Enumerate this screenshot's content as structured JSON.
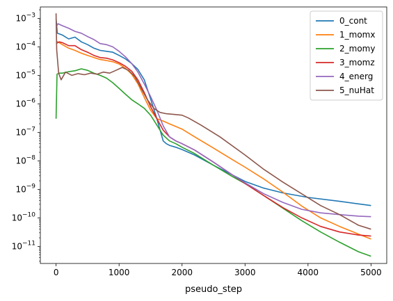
{
  "chart_data": {
    "type": "line",
    "title": "",
    "xlabel": "pseudo_step",
    "ylabel": "",
    "yscale": "log",
    "xlim": [
      -250,
      5250
    ],
    "ylim_log10": [
      -11.6,
      -2.6
    ],
    "xticks": [
      0,
      1000,
      2000,
      3000,
      4000,
      5000
    ],
    "xtick_labels": [
      "0",
      "1000",
      "2000",
      "3000",
      "4000",
      "5000"
    ],
    "yticks_exp": [
      -11,
      -10,
      -9,
      -8,
      -7,
      -6,
      -5,
      -4,
      -3
    ],
    "grid": false,
    "legend_position": "top-right",
    "series": [
      {
        "name": "0_cont",
        "color": "#1f77b4",
        "points": [
          [
            0,
            0.001
          ],
          [
            20,
            0.0003
          ],
          [
            100,
            0.00026
          ],
          [
            200,
            0.00019
          ],
          [
            300,
            0.00022
          ],
          [
            400,
            0.00015
          ],
          [
            500,
            0.00012
          ],
          [
            600,
            9e-05
          ],
          [
            700,
            7.5e-05
          ],
          [
            800,
            7e-05
          ],
          [
            900,
            6.5e-05
          ],
          [
            1000,
            5e-05
          ],
          [
            1100,
            3.8e-05
          ],
          [
            1200,
            2.6e-05
          ],
          [
            1300,
            1.6e-05
          ],
          [
            1400,
            7e-06
          ],
          [
            1500,
            1.5e-06
          ],
          [
            1600,
            3e-07
          ],
          [
            1700,
            5e-08
          ],
          [
            1750,
            4e-08
          ],
          [
            1800,
            3.5e-08
          ],
          [
            1900,
            3e-08
          ],
          [
            2000,
            2.5e-08
          ],
          [
            2200,
            1.6e-08
          ],
          [
            2500,
            7e-09
          ],
          [
            2800,
            3.2e-09
          ],
          [
            3000,
            1.9e-09
          ],
          [
            3300,
            1.1e-09
          ],
          [
            3600,
            7.5e-10
          ],
          [
            4000,
            5.2e-10
          ],
          [
            4500,
            3.8e-10
          ],
          [
            5000,
            2.7e-10
          ]
        ]
      },
      {
        "name": "1_momx",
        "color": "#ff7f0e",
        "points": [
          [
            0,
            0.00016
          ],
          [
            50,
            0.00014
          ],
          [
            100,
            0.00012
          ],
          [
            200,
            9e-05
          ],
          [
            300,
            7.5e-05
          ],
          [
            400,
            6e-05
          ],
          [
            500,
            5e-05
          ],
          [
            600,
            4.2e-05
          ],
          [
            700,
            3.6e-05
          ],
          [
            800,
            3.3e-05
          ],
          [
            900,
            3e-05
          ],
          [
            1000,
            2.5e-05
          ],
          [
            1100,
            1.8e-05
          ],
          [
            1200,
            1.1e-05
          ],
          [
            1300,
            5e-06
          ],
          [
            1400,
            1.7e-06
          ],
          [
            1500,
            6e-07
          ],
          [
            1600,
            3e-07
          ],
          [
            1700,
            2.5e-07
          ],
          [
            1800,
            2e-07
          ],
          [
            2000,
            1.3e-07
          ],
          [
            2200,
            7e-08
          ],
          [
            2500,
            2.8e-08
          ],
          [
            2800,
            1.1e-08
          ],
          [
            3000,
            6e-09
          ],
          [
            3300,
            2.3e-09
          ],
          [
            3600,
            8e-10
          ],
          [
            3900,
            2.6e-10
          ],
          [
            4200,
            1e-10
          ],
          [
            4500,
            5e-11
          ],
          [
            4800,
            2.7e-11
          ],
          [
            5000,
            1.8e-11
          ]
        ]
      },
      {
        "name": "2_momy",
        "color": "#2ca02c",
        "points": [
          [
            0,
            3e-07
          ],
          [
            15,
            1.1e-05
          ],
          [
            50,
            1.2e-05
          ],
          [
            100,
            1.2e-05
          ],
          [
            200,
            1.35e-05
          ],
          [
            300,
            1.45e-05
          ],
          [
            400,
            1.7e-05
          ],
          [
            500,
            1.5e-05
          ],
          [
            600,
            1.2e-05
          ],
          [
            700,
            1e-05
          ],
          [
            800,
            8e-06
          ],
          [
            900,
            5.5e-06
          ],
          [
            1000,
            3.5e-06
          ],
          [
            1100,
            2.2e-06
          ],
          [
            1200,
            1.4e-06
          ],
          [
            1300,
            1e-06
          ],
          [
            1400,
            7e-07
          ],
          [
            1500,
            4e-07
          ],
          [
            1600,
            1.8e-07
          ],
          [
            1700,
            8e-08
          ],
          [
            1800,
            5e-08
          ],
          [
            1900,
            4e-08
          ],
          [
            2000,
            3e-08
          ],
          [
            2200,
            1.8e-08
          ],
          [
            2500,
            7e-09
          ],
          [
            2800,
            2.8e-09
          ],
          [
            3000,
            1.6e-09
          ],
          [
            3300,
            6e-10
          ],
          [
            3600,
            2.2e-10
          ],
          [
            3900,
            8e-11
          ],
          [
            4200,
            3.2e-11
          ],
          [
            4500,
            1.4e-11
          ],
          [
            4800,
            6.5e-12
          ],
          [
            5000,
            4.5e-12
          ]
        ]
      },
      {
        "name": "3_momz",
        "color": "#d62728",
        "points": [
          [
            0,
            0.00013
          ],
          [
            50,
            0.00015
          ],
          [
            100,
            0.00014
          ],
          [
            200,
            0.00011
          ],
          [
            300,
            0.00011
          ],
          [
            400,
            8e-05
          ],
          [
            500,
            6.5e-05
          ],
          [
            600,
            5e-05
          ],
          [
            700,
            4.2e-05
          ],
          [
            800,
            4e-05
          ],
          [
            900,
            3.5e-05
          ],
          [
            1000,
            2.8e-05
          ],
          [
            1100,
            2.1e-05
          ],
          [
            1200,
            1.4e-05
          ],
          [
            1300,
            7e-06
          ],
          [
            1400,
            2.5e-06
          ],
          [
            1500,
            8e-07
          ],
          [
            1600,
            3e-07
          ],
          [
            1700,
            1.2e-07
          ],
          [
            1800,
            7e-08
          ],
          [
            1900,
            5e-08
          ],
          [
            2000,
            4e-08
          ],
          [
            2200,
            2.4e-08
          ],
          [
            2500,
            9e-09
          ],
          [
            2800,
            3.2e-09
          ],
          [
            3000,
            1.6e-09
          ],
          [
            3300,
            6e-10
          ],
          [
            3600,
            2.3e-10
          ],
          [
            3900,
            1e-10
          ],
          [
            4200,
            5e-11
          ],
          [
            4500,
            3.2e-11
          ],
          [
            4800,
            2.5e-11
          ],
          [
            5000,
            2.3e-11
          ]
        ]
      },
      {
        "name": "4_energ",
        "color": "#9467bd",
        "points": [
          [
            0,
            0.0005
          ],
          [
            30,
            0.00065
          ],
          [
            100,
            0.00055
          ],
          [
            200,
            0.00045
          ],
          [
            300,
            0.00035
          ],
          [
            400,
            0.0003
          ],
          [
            500,
            0.00023
          ],
          [
            600,
            0.00018
          ],
          [
            700,
            0.00013
          ],
          [
            800,
            0.00012
          ],
          [
            900,
            0.0001
          ],
          [
            1000,
            7e-05
          ],
          [
            1100,
            4.5e-05
          ],
          [
            1200,
            2.6e-05
          ],
          [
            1300,
            1.3e-05
          ],
          [
            1400,
            5e-06
          ],
          [
            1500,
            1.8e-06
          ],
          [
            1600,
            6e-07
          ],
          [
            1700,
            1.7e-07
          ],
          [
            1800,
            7e-08
          ],
          [
            1900,
            5e-08
          ],
          [
            2000,
            4e-08
          ],
          [
            2200,
            2.4e-08
          ],
          [
            2500,
            9e-09
          ],
          [
            2800,
            3.2e-09
          ],
          [
            3000,
            1.7e-09
          ],
          [
            3300,
            7e-10
          ],
          [
            3600,
            3.5e-10
          ],
          [
            3900,
            2e-10
          ],
          [
            4200,
            1.5e-10
          ],
          [
            4500,
            1.3e-10
          ],
          [
            4800,
            1.15e-10
          ],
          [
            5000,
            1.1e-10
          ]
        ]
      },
      {
        "name": "5_nuHat",
        "color": "#8c564b",
        "points": [
          [
            0,
            0.0015
          ],
          [
            10,
            8e-05
          ],
          [
            40,
            1.2e-05
          ],
          [
            80,
            7e-06
          ],
          [
            150,
            1.3e-05
          ],
          [
            250,
            1e-05
          ],
          [
            350,
            1.15e-05
          ],
          [
            450,
            1.05e-05
          ],
          [
            550,
            1.2e-05
          ],
          [
            650,
            1.1e-05
          ],
          [
            750,
            1.3e-05
          ],
          [
            850,
            1.2e-05
          ],
          [
            950,
            1.5e-05
          ],
          [
            1050,
            1.9e-05
          ],
          [
            1150,
            1.5e-05
          ],
          [
            1250,
            9e-06
          ],
          [
            1350,
            3.5e-06
          ],
          [
            1450,
            1.4e-06
          ],
          [
            1550,
            7e-07
          ],
          [
            1650,
            5e-07
          ],
          [
            1750,
            4.5e-07
          ],
          [
            1900,
            4.2e-07
          ],
          [
            2000,
            4e-07
          ],
          [
            2100,
            3.2e-07
          ],
          [
            2300,
            1.8e-07
          ],
          [
            2600,
            7e-08
          ],
          [
            3000,
            1.6e-08
          ],
          [
            3300,
            5e-09
          ],
          [
            3600,
            1.8e-09
          ],
          [
            3900,
            7e-10
          ],
          [
            4200,
            2.7e-10
          ],
          [
            4500,
            1.3e-10
          ],
          [
            4800,
            5.5e-11
          ],
          [
            5000,
            4e-11
          ]
        ]
      }
    ]
  }
}
